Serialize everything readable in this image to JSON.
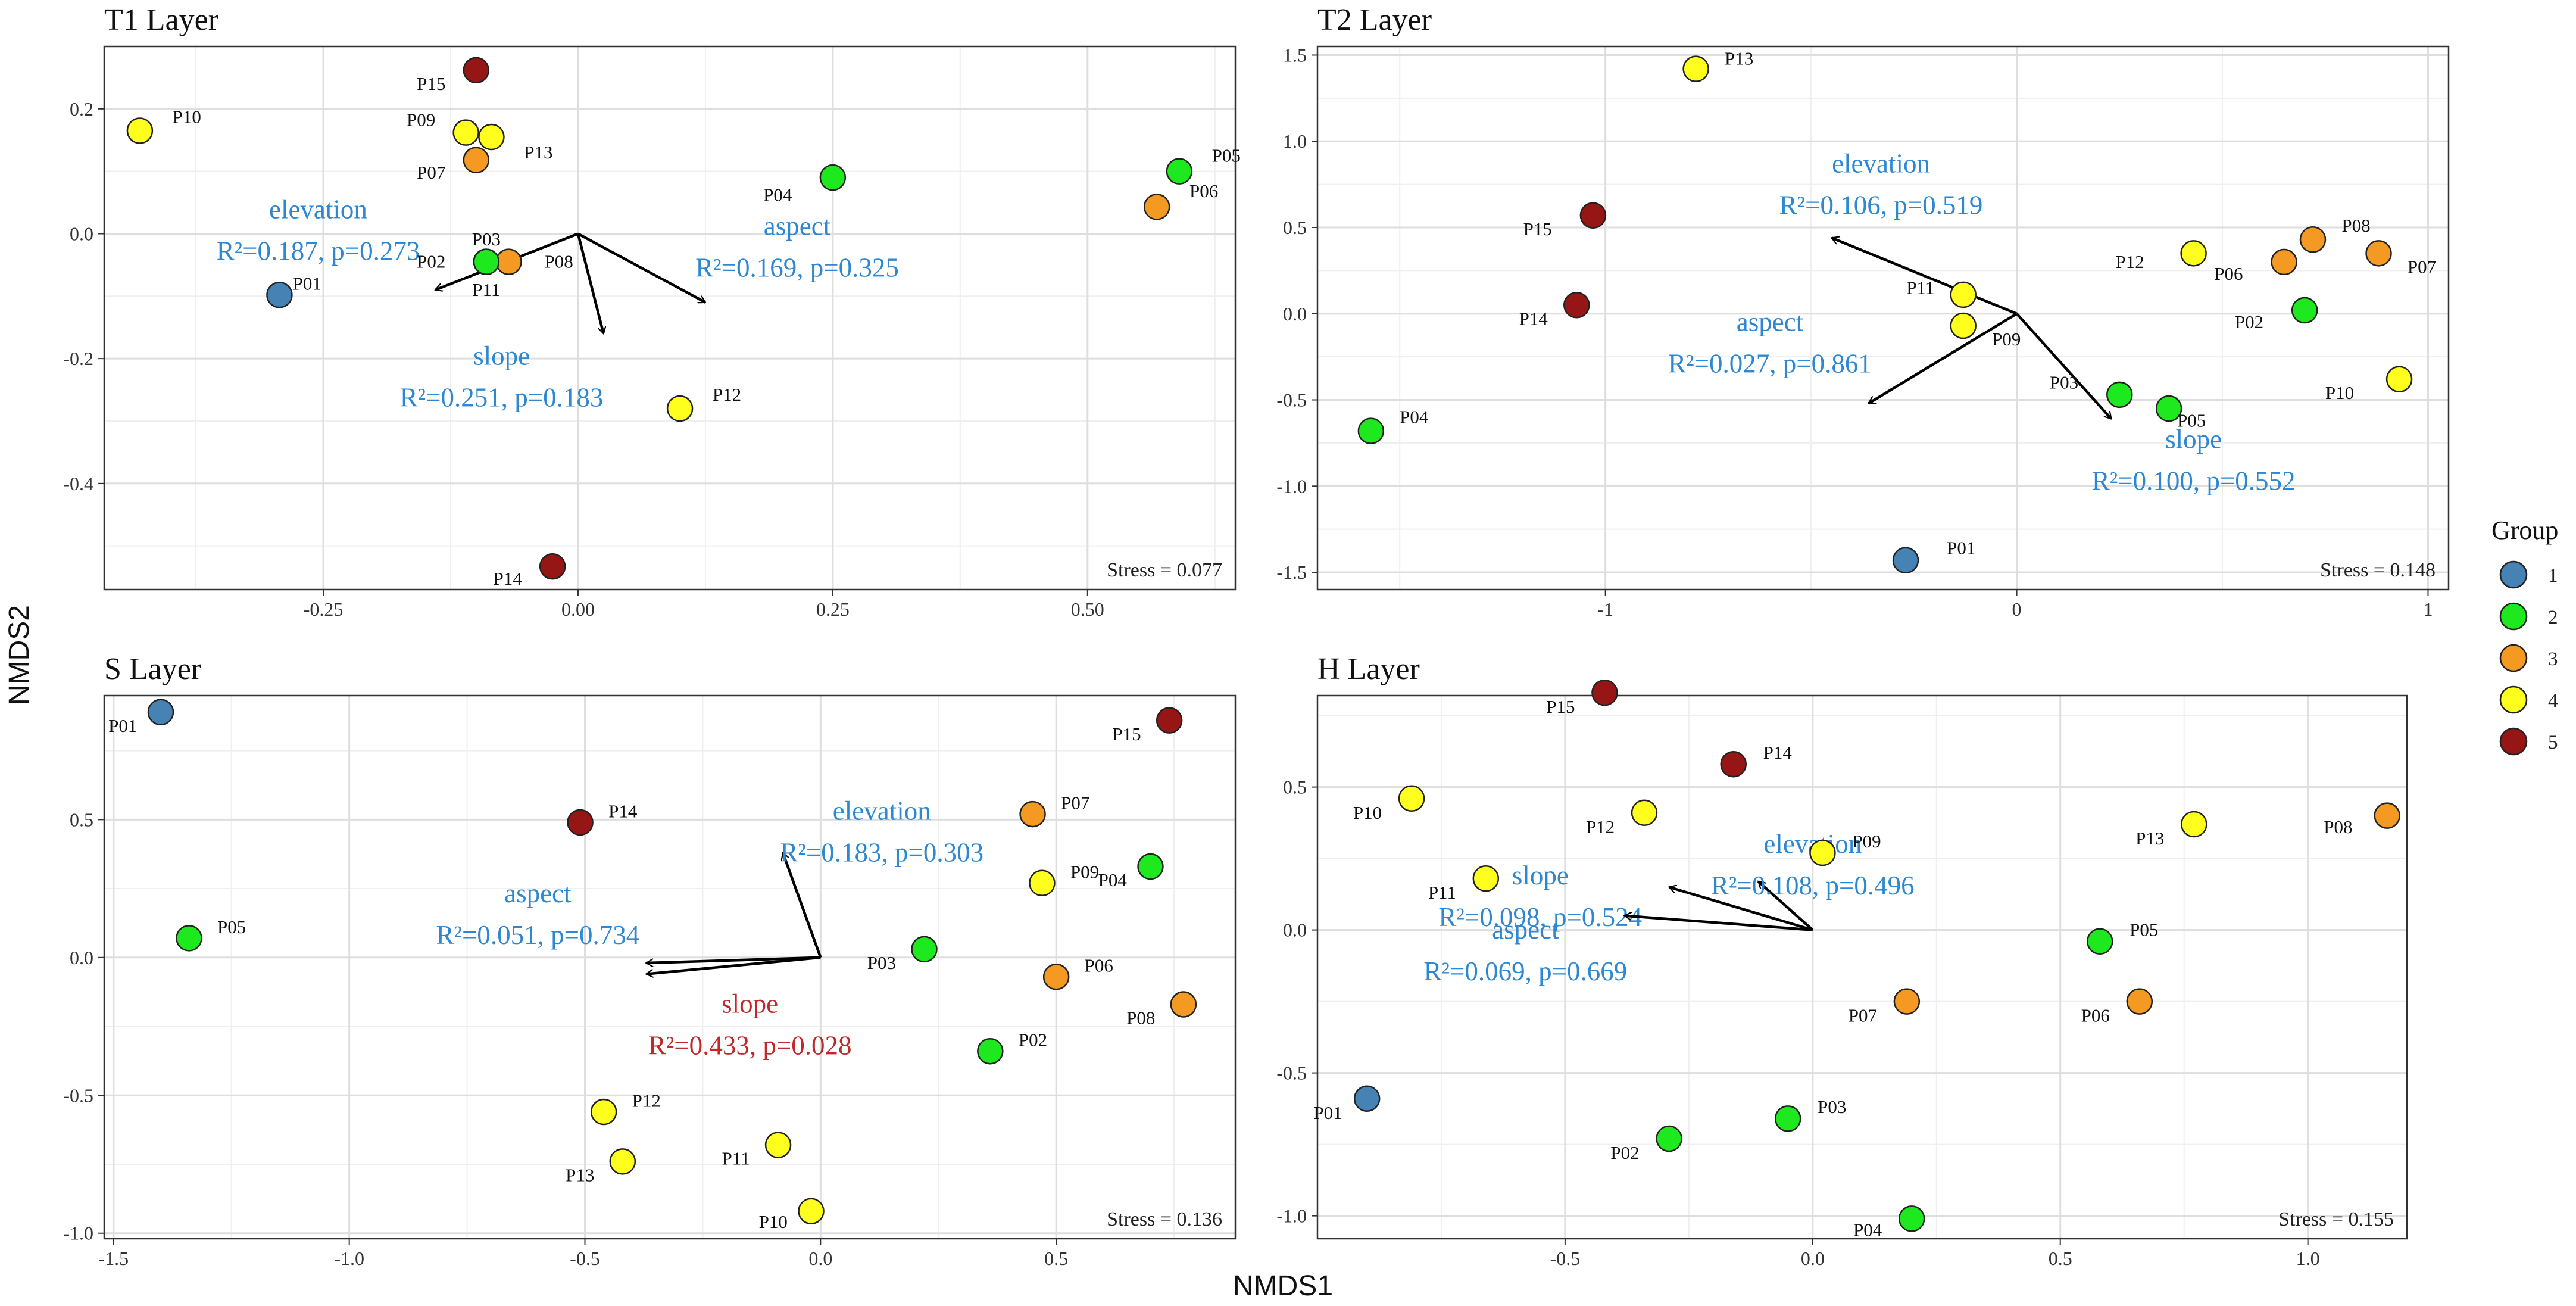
{
  "chart_data": {
    "type": "scatter",
    "xlabel": "NMDS1",
    "ylabel": "NMDS2",
    "legend": {
      "title": "Group",
      "entries": [
        {
          "label": "1",
          "color": "#4682b4"
        },
        {
          "label": "2",
          "color": "#1ee81e"
        },
        {
          "label": "3",
          "color": "#f49a22"
        },
        {
          "label": "4",
          "color": "#ffff1e"
        },
        {
          "label": "5",
          "color": "#961616"
        }
      ]
    },
    "panels": [
      {
        "id": "T1",
        "title": "T1 Layer",
        "stress": "Stress = 0.077",
        "xlim": [
          -0.465,
          0.645
        ],
        "ylim": [
          -0.57,
          0.3
        ],
        "xticks": [
          {
            "v": -0.25,
            "l": "-0.25"
          },
          {
            "v": 0,
            "l": "0.00"
          },
          {
            "v": 0.25,
            "l": "0.25"
          },
          {
            "v": 0.5,
            "l": "0.50"
          }
        ],
        "yticks": [
          {
            "v": 0.2,
            "l": "0.2"
          },
          {
            "v": 0,
            "l": "0.0"
          },
          {
            "v": -0.2,
            "l": "-0.2"
          },
          {
            "v": -0.4,
            "l": "-0.4"
          }
        ],
        "points": [
          {
            "id": "P01",
            "x": -0.293,
            "y": -0.098,
            "g": 1,
            "lx": 0.013,
            "ly": 0.018
          },
          {
            "id": "P02",
            "x": -0.09,
            "y": -0.045,
            "g": 2,
            "lx": -0.04,
            "ly": 0.0
          },
          {
            "id": "P03",
            "x": -0.09,
            "y": -0.045,
            "g": 2,
            "lx": 0.0,
            "ly": 0.036
          },
          {
            "id": "P04",
            "x": 0.25,
            "y": 0.09,
            "g": 2,
            "lx": -0.04,
            "ly": -0.028
          },
          {
            "id": "P05",
            "x": 0.59,
            "y": 0.1,
            "g": 2,
            "lx": 0.032,
            "ly": 0.025
          },
          {
            "id": "P06",
            "x": 0.568,
            "y": 0.043,
            "g": 3,
            "lx": 0.032,
            "ly": 0.025
          },
          {
            "id": "P07",
            "x": -0.1,
            "y": 0.118,
            "g": 3,
            "lx": -0.03,
            "ly": -0.02
          },
          {
            "id": "P08",
            "x": -0.068,
            "y": -0.045,
            "g": 3,
            "lx": 0.035,
            "ly": 0.0
          },
          {
            "id": "P09",
            "x": -0.11,
            "y": 0.162,
            "g": 4,
            "lx": -0.03,
            "ly": 0.02
          },
          {
            "id": "P10",
            "x": -0.43,
            "y": 0.165,
            "g": 4,
            "lx": 0.032,
            "ly": 0.022
          },
          {
            "id": "P11",
            "x": -0.09,
            "y": -0.045,
            "g": 2,
            "lx": 0.0,
            "ly": -0.045
          },
          {
            "id": "P12",
            "x": 0.1,
            "y": -0.28,
            "g": 4,
            "lx": 0.032,
            "ly": 0.022
          },
          {
            "id": "P13",
            "x": -0.085,
            "y": 0.155,
            "g": 4,
            "lx": 0.032,
            "ly": -0.025
          },
          {
            "id": "P14",
            "x": -0.025,
            "y": -0.533,
            "g": 5,
            "lx": -0.03,
            "ly": -0.02
          },
          {
            "id": "P15",
            "x": -0.1,
            "y": 0.262,
            "g": 5,
            "lx": -0.03,
            "ly": -0.022
          }
        ],
        "vectors": [
          {
            "name": "elevation",
            "stat": "R²=0.187, p=0.273",
            "color": "#2d87d2",
            "x": -0.14,
            "y": -0.09,
            "tx": -0.255,
            "ty": 0.025
          },
          {
            "name": "aspect",
            "stat": "R²=0.169, p=0.325",
            "color": "#2d87d2",
            "x": 0.125,
            "y": -0.11,
            "tx": 0.215,
            "ty": -0.002
          },
          {
            "name": "slope",
            "stat": "R²=0.251, p=0.183",
            "color": "#2d87d2",
            "x": 0.025,
            "y": -0.16,
            "tx": -0.075,
            "ty": -0.21
          }
        ]
      },
      {
        "id": "T2",
        "title": "T2 Layer",
        "stress": "Stress = 0.148",
        "xlim": [
          -1.7,
          1.05
        ],
        "ylim": [
          -1.6,
          1.55
        ],
        "xticks": [
          {
            "v": -1,
            "l": "-1"
          },
          {
            "v": 0,
            "l": "0"
          },
          {
            "v": 1,
            "l": "1"
          }
        ],
        "yticks": [
          {
            "v": 1.5,
            "l": "1.5"
          },
          {
            "v": 1.0,
            "l": "1.0"
          },
          {
            "v": 0.5,
            "l": "0.5"
          },
          {
            "v": 0,
            "l": "0.0"
          },
          {
            "v": -0.5,
            "l": "-0.5"
          },
          {
            "v": -1.0,
            "l": "-1.0"
          },
          {
            "v": -1.5,
            "l": "-1.5"
          }
        ],
        "points": [
          {
            "id": "P01",
            "x": -0.27,
            "y": -1.43,
            "g": 1,
            "lx": 0.1,
            "ly": 0.07
          },
          {
            "id": "P02",
            "x": 0.7,
            "y": 0.02,
            "g": 2,
            "lx": -0.1,
            "ly": -0.07
          },
          {
            "id": "P03",
            "x": 0.25,
            "y": -0.47,
            "g": 2,
            "lx": -0.1,
            "ly": 0.07
          },
          {
            "id": "P04",
            "x": -1.57,
            "y": -0.68,
            "g": 2,
            "lx": 0.07,
            "ly": 0.08
          },
          {
            "id": "P05",
            "x": 0.37,
            "y": -0.55,
            "g": 2,
            "lx": 0.02,
            "ly": -0.07
          },
          {
            "id": "P06",
            "x": 0.65,
            "y": 0.3,
            "g": 3,
            "lx": -0.1,
            "ly": -0.07
          },
          {
            "id": "P07",
            "x": 0.88,
            "y": 0.35,
            "g": 3,
            "lx": 0.07,
            "ly": -0.08
          },
          {
            "id": "P08",
            "x": 0.72,
            "y": 0.43,
            "g": 3,
            "lx": 0.07,
            "ly": 0.08
          },
          {
            "id": "P09",
            "x": -0.13,
            "y": -0.07,
            "g": 4,
            "lx": 0.07,
            "ly": -0.08
          },
          {
            "id": "P10",
            "x": 0.93,
            "y": -0.38,
            "g": 4,
            "lx": -0.11,
            "ly": -0.08
          },
          {
            "id": "P11",
            "x": -0.13,
            "y": 0.11,
            "g": 4,
            "lx": -0.07,
            "ly": 0.04
          },
          {
            "id": "P12",
            "x": 0.43,
            "y": 0.35,
            "g": 4,
            "lx": -0.12,
            "ly": -0.05
          },
          {
            "id": "P13",
            "x": -0.78,
            "y": 1.42,
            "g": 4,
            "lx": 0.07,
            "ly": 0.06
          },
          {
            "id": "P14",
            "x": -1.07,
            "y": 0.05,
            "g": 5,
            "lx": -0.07,
            "ly": -0.08
          },
          {
            "id": "P15",
            "x": -1.03,
            "y": 0.57,
            "g": 5,
            "lx": -0.1,
            "ly": -0.08
          }
        ],
        "vectors": [
          {
            "name": "elevation",
            "stat": "R²=0.106, p=0.519",
            "color": "#2d87d2",
            "x": -0.45,
            "y": 0.44,
            "tx": -0.33,
            "ty": 0.82
          },
          {
            "name": "aspect",
            "stat": "R²=0.027, p=0.861",
            "color": "#2d87d2",
            "x": -0.36,
            "y": -0.52,
            "tx": -0.6,
            "ty": -0.1
          },
          {
            "name": "slope",
            "stat": "R²=0.100, p=0.552",
            "color": "#2d87d2",
            "x": 0.23,
            "y": -0.61,
            "tx": 0.43,
            "ty": -0.78
          }
        ]
      },
      {
        "id": "S",
        "title": "S Layer",
        "stress": "Stress = 0.136",
        "xlim": [
          -1.52,
          0.88
        ],
        "ylim": [
          -1.02,
          0.95
        ],
        "xticks": [
          {
            "v": -1.5,
            "l": "-1.5"
          },
          {
            "v": -1.0,
            "l": "-1.0"
          },
          {
            "v": -0.5,
            "l": "-0.5"
          },
          {
            "v": 0,
            "l": "0.0"
          },
          {
            "v": 0.5,
            "l": "0.5"
          }
        ],
        "yticks": [
          {
            "v": 0.5,
            "l": "0.5"
          },
          {
            "v": 0,
            "l": "0.0"
          },
          {
            "v": -0.5,
            "l": "-0.5"
          },
          {
            "v": -1.0,
            "l": "-1.0"
          }
        ],
        "points": [
          {
            "id": "P01",
            "x": -1.4,
            "y": 0.89,
            "g": 1,
            "lx": -0.05,
            "ly": -0.05
          },
          {
            "id": "P02",
            "x": 0.36,
            "y": -0.34,
            "g": 2,
            "lx": 0.06,
            "ly": 0.04
          },
          {
            "id": "P03",
            "x": 0.22,
            "y": 0.03,
            "g": 2,
            "lx": -0.06,
            "ly": -0.05
          },
          {
            "id": "P04",
            "x": 0.7,
            "y": 0.33,
            "g": 2,
            "lx": -0.05,
            "ly": -0.05
          },
          {
            "id": "P05",
            "x": -1.34,
            "y": 0.07,
            "g": 2,
            "lx": 0.06,
            "ly": 0.04
          },
          {
            "id": "P06",
            "x": 0.5,
            "y": -0.07,
            "g": 3,
            "lx": 0.06,
            "ly": 0.04
          },
          {
            "id": "P07",
            "x": 0.45,
            "y": 0.52,
            "g": 3,
            "lx": 0.06,
            "ly": 0.04
          },
          {
            "id": "P08",
            "x": 0.77,
            "y": -0.17,
            "g": 3,
            "lx": -0.06,
            "ly": -0.05
          },
          {
            "id": "P09",
            "x": 0.47,
            "y": 0.27,
            "g": 4,
            "lx": 0.06,
            "ly": 0.04
          },
          {
            "id": "P10",
            "x": -0.02,
            "y": -0.92,
            "g": 4,
            "lx": -0.05,
            "ly": -0.04
          },
          {
            "id": "P11",
            "x": -0.09,
            "y": -0.68,
            "g": 4,
            "lx": -0.06,
            "ly": -0.05
          },
          {
            "id": "P12",
            "x": -0.46,
            "y": -0.56,
            "g": 4,
            "lx": 0.06,
            "ly": 0.04
          },
          {
            "id": "P13",
            "x": -0.42,
            "y": -0.74,
            "g": 4,
            "lx": -0.06,
            "ly": -0.05
          },
          {
            "id": "P14",
            "x": -0.51,
            "y": 0.49,
            "g": 5,
            "lx": 0.06,
            "ly": 0.04
          },
          {
            "id": "P15",
            "x": 0.74,
            "y": 0.86,
            "g": 5,
            "lx": -0.06,
            "ly": -0.05
          }
        ],
        "vectors": [
          {
            "name": "elevation",
            "stat": "R²=0.183, p=0.303",
            "color": "#2d87d2",
            "x": -0.08,
            "y": 0.38,
            "tx": 0.13,
            "ty": 0.5
          },
          {
            "name": "aspect",
            "stat": "R²=0.051, p=0.734",
            "color": "#2d87d2",
            "x": -0.37,
            "y": -0.02,
            "tx": -0.6,
            "ty": 0.2
          },
          {
            "name": "slope",
            "stat": "R²=0.433, p=0.028",
            "color": "#c0282a",
            "x": -0.37,
            "y": -0.06,
            "tx": -0.15,
            "ty": -0.2
          }
        ]
      },
      {
        "id": "H",
        "title": "H Layer",
        "stress": "Stress = 0.155",
        "xlim": [
          -1.0,
          1.2
        ],
        "ylim": [
          -1.08,
          0.82
        ],
        "xticks": [
          {
            "v": -0.5,
            "l": "-0.5"
          },
          {
            "v": 0,
            "l": "0.0"
          },
          {
            "v": 0.5,
            "l": "0.5"
          },
          {
            "v": 1.0,
            "l": "1.0"
          }
        ],
        "yticks": [
          {
            "v": 0.5,
            "l": "0.5"
          },
          {
            "v": 0,
            "l": "0.0"
          },
          {
            "v": -0.5,
            "l": "-0.5"
          },
          {
            "v": -1.0,
            "l": "-1.0"
          }
        ],
        "points": [
          {
            "id": "P01",
            "x": -0.9,
            "y": -0.59,
            "g": 1,
            "lx": -0.05,
            "ly": -0.05
          },
          {
            "id": "P02",
            "x": -0.29,
            "y": -0.73,
            "g": 2,
            "lx": -0.06,
            "ly": -0.05
          },
          {
            "id": "P03",
            "x": -0.05,
            "y": -0.66,
            "g": 2,
            "lx": 0.06,
            "ly": 0.04
          },
          {
            "id": "P04",
            "x": 0.2,
            "y": -1.01,
            "g": 2,
            "lx": -0.06,
            "ly": -0.04
          },
          {
            "id": "P05",
            "x": 0.58,
            "y": -0.04,
            "g": 2,
            "lx": 0.06,
            "ly": 0.04
          },
          {
            "id": "P06",
            "x": 0.66,
            "y": -0.25,
            "g": 3,
            "lx": -0.06,
            "ly": -0.05
          },
          {
            "id": "P07",
            "x": 0.19,
            "y": -0.25,
            "g": 3,
            "lx": -0.06,
            "ly": -0.05
          },
          {
            "id": "P08",
            "x": 1.16,
            "y": 0.4,
            "g": 3,
            "lx": -0.07,
            "ly": -0.04
          },
          {
            "id": "P09",
            "x": 0.02,
            "y": 0.27,
            "g": 4,
            "lx": 0.06,
            "ly": 0.04
          },
          {
            "id": "P10",
            "x": -0.81,
            "y": 0.46,
            "g": 4,
            "lx": -0.06,
            "ly": -0.05
          },
          {
            "id": "P11",
            "x": -0.66,
            "y": 0.18,
            "g": 4,
            "lx": -0.06,
            "ly": -0.05
          },
          {
            "id": "P12",
            "x": -0.34,
            "y": 0.41,
            "g": 4,
            "lx": -0.06,
            "ly": -0.05
          },
          {
            "id": "P13",
            "x": 0.77,
            "y": 0.37,
            "g": 4,
            "lx": -0.06,
            "ly": -0.05
          },
          {
            "id": "P14",
            "x": -0.16,
            "y": 0.58,
            "g": 5,
            "lx": 0.06,
            "ly": 0.04
          },
          {
            "id": "P15",
            "x": -0.42,
            "y": 0.83,
            "g": 5,
            "lx": -0.06,
            "ly": -0.05
          }
        ],
        "vectors": [
          {
            "name": "elevation",
            "stat": "R²=0.108, p=0.496",
            "color": "#2d87d2",
            "x": -0.11,
            "y": 0.17,
            "tx": 0.0,
            "ty": 0.27
          },
          {
            "name": "slope",
            "stat": "R²=0.098, p=0.524",
            "color": "#2d87d2",
            "x": -0.29,
            "y": 0.15,
            "tx": -0.55,
            "ty": 0.16
          },
          {
            "name": "aspect",
            "stat": "R²=0.069, p=0.669",
            "color": "#2d87d2",
            "x": -0.38,
            "y": 0.05,
            "tx": -0.58,
            "ty": -0.03
          }
        ]
      }
    ]
  }
}
